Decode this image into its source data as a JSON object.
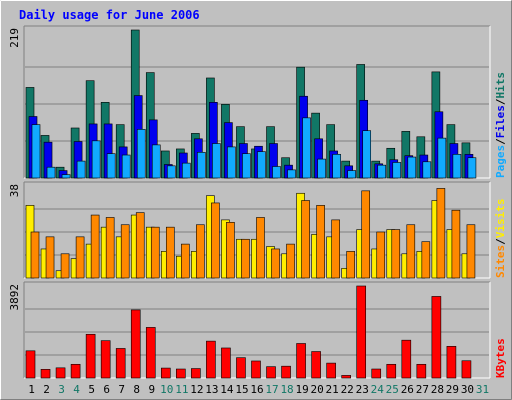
{
  "chart_data": [
    {
      "type": "bar",
      "title": "Daily usage for June 2006",
      "x": [
        "1",
        "2",
        "3",
        "4",
        "5",
        "6",
        "7",
        "8",
        "9",
        "10",
        "11",
        "12",
        "13",
        "14",
        "15",
        "16",
        "17",
        "18",
        "19",
        "20",
        "21",
        "22",
        "23",
        "24",
        "25",
        "26",
        "27",
        "28",
        "29",
        "30",
        "31"
      ],
      "weekend_days": [
        "3",
        "4",
        "10",
        "11",
        "17",
        "18",
        "24",
        "25",
        "31"
      ],
      "y_max_label": "219",
      "y_max": 219,
      "series": [
        {
          "name": "Hits",
          "color": "#117766",
          "values": [
            134,
            63,
            16,
            74,
            144,
            112,
            79,
            219,
            156,
            40,
            43,
            66,
            148,
            109,
            76,
            43,
            76,
            30,
            164,
            96,
            79,
            25,
            168,
            25,
            44,
            69,
            61,
            157,
            79,
            52,
            0
          ]
        },
        {
          "name": "Files",
          "color": "#0000ee",
          "values": [
            91,
            53,
            11,
            54,
            80,
            80,
            46,
            122,
            86,
            20,
            37,
            58,
            112,
            82,
            51,
            47,
            51,
            19,
            121,
            58,
            40,
            18,
            115,
            21,
            27,
            33,
            34,
            98,
            51,
            35,
            0
          ]
        },
        {
          "name": "Pages",
          "color": "#11aaff",
          "values": [
            79,
            16,
            5,
            25,
            55,
            36,
            34,
            72,
            49,
            18,
            22,
            38,
            51,
            46,
            36,
            39,
            17,
            12,
            89,
            28,
            35,
            11,
            70,
            19,
            23,
            31,
            24,
            59,
            35,
            30,
            0
          ]
        }
      ],
      "ylabel": [
        "Pages",
        "/",
        "Files",
        "/",
        "Hits"
      ]
    },
    {
      "type": "bar",
      "y_max_label": "38",
      "y_max": 38,
      "series": [
        {
          "name": "Visits",
          "color": "#ffee00",
          "values": [
            30,
            12,
            3,
            8,
            14,
            21,
            17,
            26,
            21,
            11,
            9,
            11,
            34,
            24,
            16,
            16,
            13,
            10,
            35,
            18,
            17,
            4,
            20,
            12,
            20,
            10,
            11,
            32,
            20,
            10,
            0
          ]
        },
        {
          "name": "Sites",
          "color": "#ff8800",
          "values": [
            19,
            17,
            10,
            17,
            26,
            25,
            22,
            27,
            21,
            21,
            14,
            22,
            31,
            23,
            16,
            25,
            12,
            14,
            32,
            30,
            24,
            11,
            36,
            19,
            20,
            22,
            15,
            37,
            28,
            22,
            0
          ]
        }
      ],
      "ylabel": [
        "Sites",
        "/",
        "Visits"
      ]
    },
    {
      "type": "bar",
      "y_max_label": "3892",
      "y_max": 3892,
      "series": [
        {
          "name": "KBytes",
          "color": "#ff0000",
          "values": [
            1150,
            366,
            430,
            580,
            1850,
            1580,
            1250,
            2880,
            2140,
            420,
            380,
            400,
            1560,
            1270,
            860,
            720,
            480,
            500,
            1460,
            1120,
            630,
            110,
            3892,
            380,
            580,
            1600,
            580,
            3450,
            1340,
            730,
            0
          ]
        }
      ],
      "ylabel": [
        "KBytes"
      ]
    }
  ],
  "colors": {
    "background": "#c0c0c0",
    "title": "#0000ff",
    "weekday_label": "#000000",
    "weekend_label": "#117766"
  }
}
